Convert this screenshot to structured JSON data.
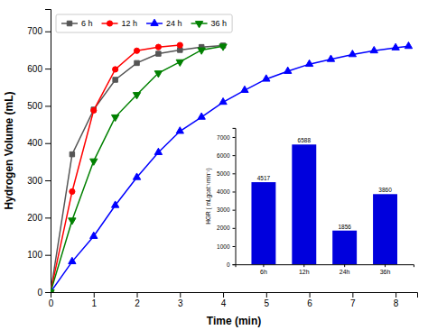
{
  "chart_data": [
    {
      "type": "line",
      "xlabel": "Time (min)",
      "ylabel": "Hydrogen Volume (mL)",
      "xlim": [
        0,
        8.5
      ],
      "ylim": [
        0,
        760
      ],
      "xticks": [
        0,
        1,
        2,
        3,
        4,
        5,
        6,
        7,
        8
      ],
      "yticks": [
        0,
        100,
        200,
        300,
        400,
        500,
        600,
        700
      ],
      "grid": false,
      "legend": "upper left",
      "series": [
        {
          "name": "6 h",
          "color": "#555555",
          "marker": "square",
          "x": [
            0,
            0.5,
            1.0,
            1.5,
            2.0,
            2.5,
            3.0,
            3.5,
            4.0
          ],
          "values": [
            0,
            370,
            490,
            570,
            615,
            640,
            650,
            658,
            662
          ]
        },
        {
          "name": "12 h",
          "color": "#ff0000",
          "marker": "circle",
          "x": [
            0,
            0.5,
            1.0,
            1.5,
            2.0,
            2.5,
            3.0
          ],
          "values": [
            0,
            270,
            488,
            598,
            648,
            658,
            663
          ]
        },
        {
          "name": "24 h",
          "color": "#0000ff",
          "marker": "triangle-up",
          "x": [
            0,
            0.5,
            1.0,
            1.5,
            2.0,
            2.5,
            3.0,
            3.5,
            4.0,
            4.5,
            5.0,
            5.5,
            6.0,
            6.5,
            7.0,
            7.5,
            8.0,
            8.3
          ],
          "values": [
            0,
            82,
            150,
            233,
            308,
            375,
            432,
            470,
            510,
            542,
            572,
            593,
            612,
            625,
            638,
            648,
            656,
            660
          ]
        },
        {
          "name": "36 h",
          "color": "#008000",
          "marker": "triangle-down",
          "x": [
            0,
            0.5,
            1.0,
            1.5,
            2.0,
            2.5,
            3.0,
            3.5,
            4.0
          ],
          "values": [
            0,
            193,
            352,
            470,
            530,
            588,
            618,
            650,
            660
          ]
        }
      ]
    },
    {
      "type": "bar",
      "ylabel": "HGR ( mLgcat⁻¹min⁻¹)",
      "categories": [
        "6h",
        "12h",
        "24h",
        "36h"
      ],
      "values": [
        4517,
        6588,
        1856,
        3860
      ],
      "color": "#0000dd",
      "ylim": [
        0,
        7500
      ],
      "yticks": [
        0,
        1000,
        2000,
        3000,
        4000,
        5000,
        6000,
        7000
      ],
      "data_labels": true,
      "grid": false
    }
  ]
}
